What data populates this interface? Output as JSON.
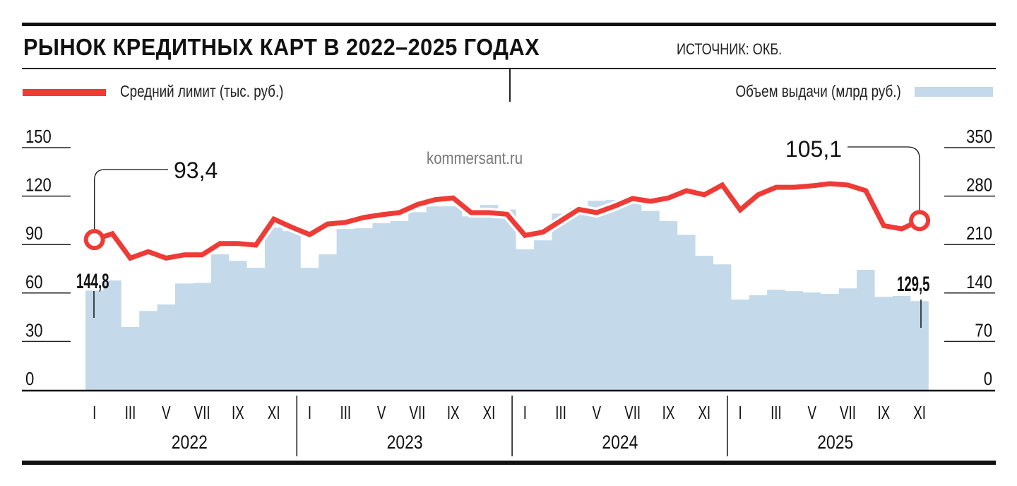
{
  "header": {
    "title": "РЫНОК КРЕДИТНЫХ КАРТ В 2022–2025 ГОДАХ",
    "source": "ИСТОЧНИК: ОКБ."
  },
  "legend": {
    "line_label": "Средний лимит (тыс. руб.)",
    "bar_label": "Объем выдачи (млрд руб.)"
  },
  "watermark": "kommersant.ru",
  "annotations": {
    "line_start": "93,4",
    "line_end": "105,1",
    "bar_start": "144,8",
    "bar_end": "129,5"
  },
  "axes": {
    "left_ticks": [
      "0",
      "30",
      "60",
      "90",
      "120",
      "150"
    ],
    "right_ticks": [
      "0",
      "70",
      "140",
      "210",
      "280",
      "350"
    ],
    "month_labels": [
      "I",
      "III",
      "V",
      "VII",
      "IX",
      "XI"
    ],
    "years": [
      "2022",
      "2023",
      "2024",
      "2025"
    ]
  },
  "colors": {
    "line": "#ee3b36",
    "bars": "#c4d9ea",
    "text": "#111111"
  },
  "chart_data": {
    "type": "bar+line",
    "title": "РЫНОК КРЕДИТНЫХ КАРТ В 2022–2025 ГОДАХ",
    "subtitle": "ИСТОЧНИК: ОКБ.",
    "x": [
      "2022-01",
      "2022-02",
      "2022-03",
      "2022-04",
      "2022-05",
      "2022-06",
      "2022-07",
      "2022-08",
      "2022-09",
      "2022-10",
      "2022-11",
      "2022-12",
      "2023-01",
      "2023-02",
      "2023-03",
      "2023-04",
      "2023-05",
      "2023-06",
      "2023-07",
      "2023-08",
      "2023-09",
      "2023-10",
      "2023-11",
      "2023-12",
      "2024-01",
      "2024-02",
      "2024-03",
      "2024-04",
      "2024-05",
      "2024-06",
      "2024-07",
      "2024-08",
      "2024-09",
      "2024-10",
      "2024-11",
      "2024-12",
      "2025-01",
      "2025-02",
      "2025-03",
      "2025-04",
      "2025-05",
      "2025-06",
      "2025-07",
      "2025-08",
      "2025-09",
      "2025-10",
      "2025-11"
    ],
    "series": [
      {
        "name": "Объем выдачи (млрд руб.)",
        "type": "bar",
        "axis": "right",
        "values": [
          144.8,
          159.5,
          91.6,
          115,
          124.5,
          155,
          156,
          197.5,
          188,
          178,
          236.7,
          231.5,
          178,
          197.5,
          234.6,
          235.6,
          243,
          246,
          259,
          267.5,
          267.5,
          253,
          269.6,
          263,
          204.8,
          218,
          257,
          265.5,
          275.8,
          276.8,
          276.8,
          261,
          246,
          226,
          195.5,
          183,
          131.7,
          138,
          146,
          144,
          142,
          140,
          148,
          175,
          135.8,
          137,
          129.5
        ]
      },
      {
        "name": "Средний лимит (тыс. руб.)",
        "type": "line",
        "axis": "left",
        "values": [
          93.4,
          97,
          82,
          86,
          82,
          84,
          84,
          91,
          91,
          90,
          106,
          101,
          96.5,
          103,
          104,
          107,
          108.7,
          110,
          115,
          118,
          119,
          110,
          110,
          109,
          96,
          98,
          105,
          112,
          110,
          114,
          118.7,
          117,
          119,
          123.5,
          121,
          127,
          111.7,
          121,
          125.6,
          125.6,
          126.5,
          127.8,
          127,
          123.5,
          102,
          100,
          105.1
        ]
      }
    ],
    "xlabel": "",
    "ylabel_left": "Средний лимит (тыс. руб.)",
    "ylabel_right": "Объем выдачи (млрд руб.)",
    "ylim_left": [
      0,
      150
    ],
    "ylim_right": [
      0,
      350
    ],
    "x_tick_labels": [
      "I",
      "III",
      "V",
      "VII",
      "IX",
      "XI"
    ],
    "x_group_labels": [
      "2022",
      "2023",
      "2024",
      "2025"
    ],
    "annotations": [
      {
        "text": "93,4",
        "series": "line",
        "x": "2022-01"
      },
      {
        "text": "105,1",
        "series": "line",
        "x": "2025-11"
      },
      {
        "text": "144,8",
        "series": "bar",
        "x": "2022-01"
      },
      {
        "text": "129,5",
        "series": "bar",
        "x": "2025-11"
      }
    ],
    "grid": false,
    "legend_position": "top"
  }
}
